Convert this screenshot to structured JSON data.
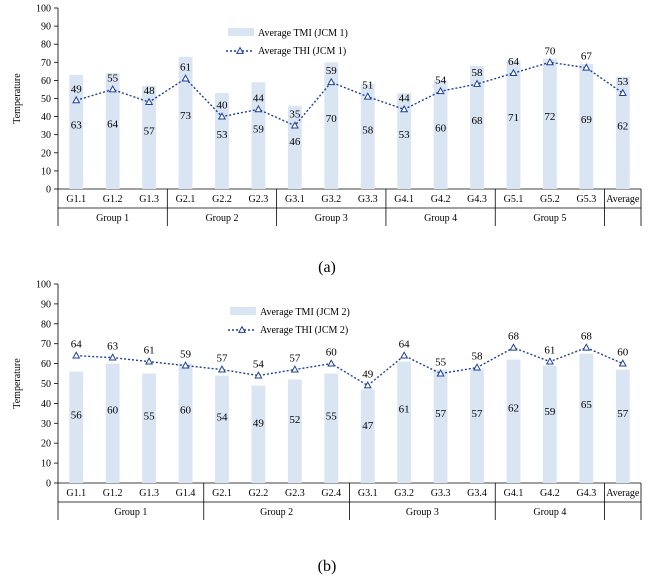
{
  "chart_data": [
    {
      "type": "bar",
      "caption": "(a)",
      "ylabel": "Temperature",
      "ylim": [
        0,
        100
      ],
      "yticks": [
        0,
        10,
        20,
        30,
        40,
        50,
        60,
        70,
        80,
        90,
        100
      ],
      "grid": false,
      "legend_position": "top-center",
      "categories": [
        "G1.1",
        "G1.2",
        "G1.3",
        "G2.1",
        "G2.2",
        "G2.3",
        "G3.1",
        "G3.2",
        "G3.3",
        "G4.1",
        "G4.2",
        "G4.3",
        "G5.1",
        "G5.2",
        "G5.3",
        "Average"
      ],
      "groups": [
        {
          "label": "Group 1",
          "count": 3
        },
        {
          "label": "Group 2",
          "count": 3
        },
        {
          "label": "Group 3",
          "count": 3
        },
        {
          "label": "Group 4",
          "count": 3
        },
        {
          "label": "Group 5",
          "count": 3
        },
        {
          "label": "",
          "count": 1
        }
      ],
      "series": [
        {
          "name": "Average TMI (JCM 1)",
          "kind": "bar",
          "color": "#dae5f4",
          "values": [
            63,
            64,
            57,
            73,
            53,
            59,
            46,
            70,
            58,
            53,
            60,
            68,
            71,
            72,
            69,
            62
          ]
        },
        {
          "name": "Average THI (JCM 1)",
          "kind": "line",
          "color": "#1f3f99",
          "values": [
            49,
            55,
            48,
            61,
            40,
            44,
            35,
            59,
            51,
            44,
            54,
            58,
            64,
            70,
            67,
            53
          ]
        }
      ]
    },
    {
      "type": "bar",
      "caption": "(b)",
      "ylabel": "Temperature",
      "ylim": [
        0,
        100
      ],
      "yticks": [
        0,
        10,
        20,
        30,
        40,
        50,
        60,
        70,
        80,
        90,
        100
      ],
      "grid": false,
      "legend_position": "top-center",
      "categories": [
        "G1.1",
        "G1.2",
        "G1.3",
        "G1.4",
        "G2.1",
        "G2.2",
        "G2.3",
        "G2.4",
        "G3.1",
        "G3.2",
        "G3.3",
        "G3.4",
        "G4.1",
        "G4.2",
        "G4.3",
        "Average"
      ],
      "groups": [
        {
          "label": "Group 1",
          "count": 4
        },
        {
          "label": "Group 2",
          "count": 4
        },
        {
          "label": "Group 3",
          "count": 4
        },
        {
          "label": "Group 4",
          "count": 3
        },
        {
          "label": "",
          "count": 1
        }
      ],
      "series": [
        {
          "name": "Average TMI (JCM 2)",
          "kind": "bar",
          "color": "#dae5f4",
          "values": [
            56,
            60,
            55,
            60,
            54,
            49,
            52,
            55,
            47,
            61,
            57,
            57,
            62,
            59,
            65,
            57
          ]
        },
        {
          "name": "Average THI (JCM 2)",
          "kind": "line",
          "color": "#1f3f99",
          "values": [
            64,
            63,
            61,
            59,
            57,
            54,
            57,
            60,
            49,
            64,
            55,
            58,
            68,
            61,
            68,
            60
          ]
        }
      ]
    }
  ]
}
